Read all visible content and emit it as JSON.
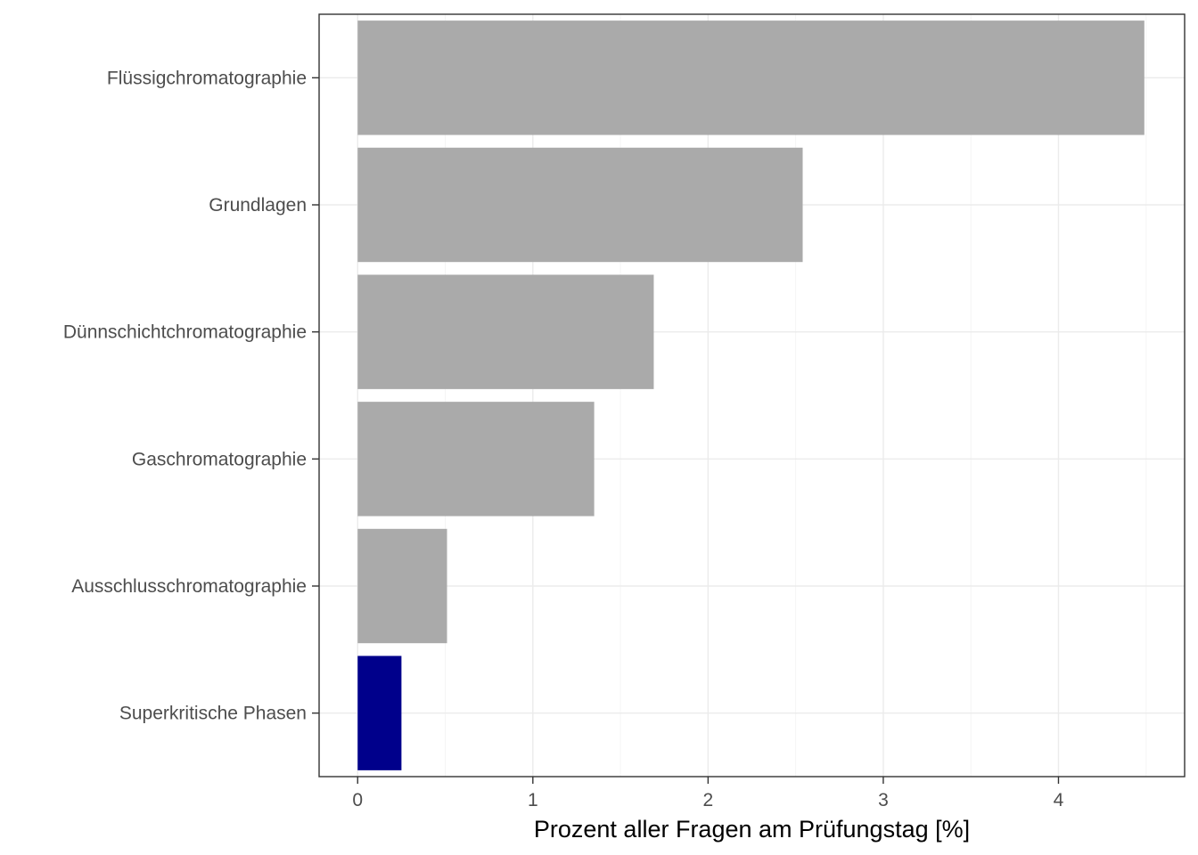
{
  "chart_data": {
    "type": "bar",
    "orientation": "horizontal",
    "categories": [
      "Flüssigchromatographie",
      "Grundlagen",
      "Dünnschichtchromatographie",
      "Gaschromatographie",
      "Ausschlusschromatographie",
      "Superkritische Phasen"
    ],
    "values": [
      4.49,
      2.54,
      1.69,
      1.35,
      0.51,
      0.25
    ],
    "highlight_index": 5,
    "title": "",
    "xlabel": "Prozent aller Fragen am Prüfungstag [%]",
    "ylabel": "",
    "xlim": [
      -0.22,
      4.72
    ],
    "xticks": [
      0,
      1,
      2,
      3,
      4
    ],
    "xtick_labels": [
      "0",
      "1",
      "2",
      "3",
      "4"
    ],
    "grid": true,
    "legend": "none",
    "colors": {
      "bar": "#aaaaaa",
      "highlight": "#00008b",
      "grid_major": "#ebebeb",
      "grid_minor": "#f5f5f5",
      "panel_border": "#333333",
      "tick_text": "#4d4d4d"
    }
  }
}
